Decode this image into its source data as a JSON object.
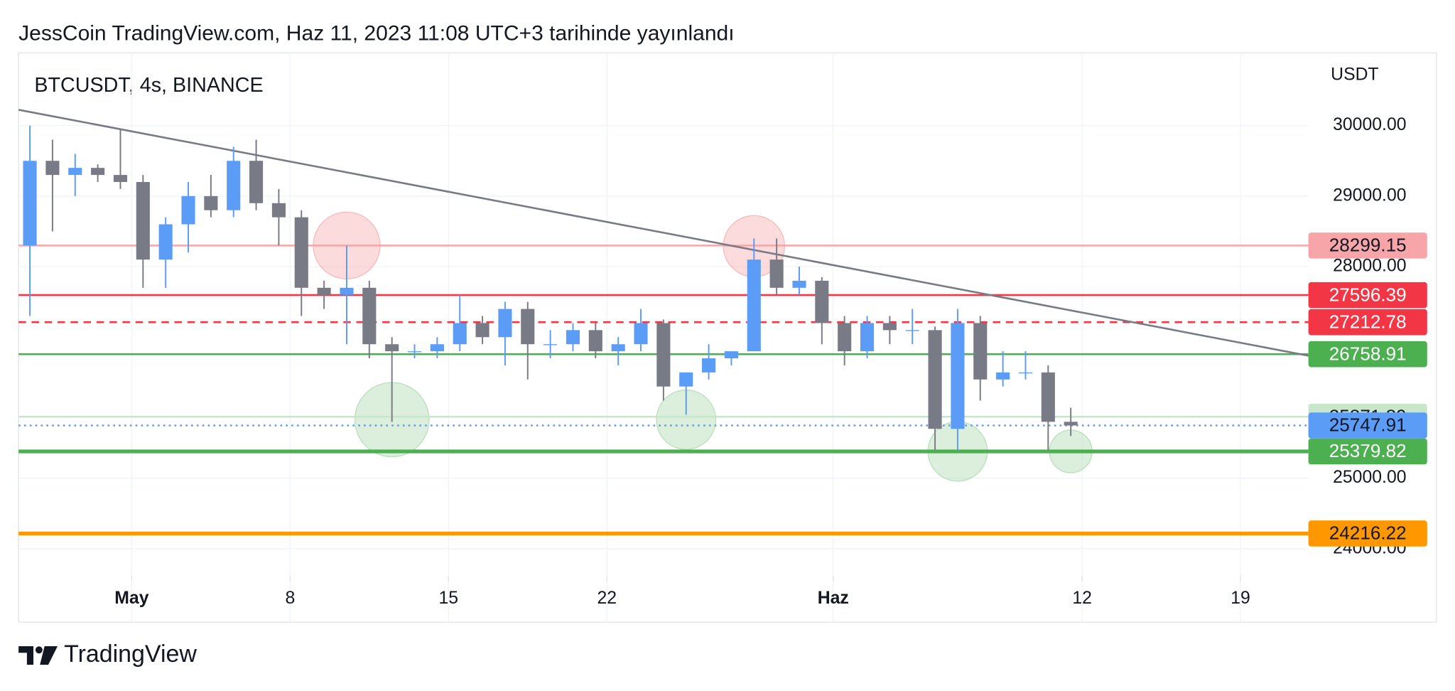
{
  "header": {
    "title": "JessCoin TradingView.com, Haz 11, 2023 11:08 UTC+3 tarihinde yayınlandı"
  },
  "footer": {
    "brand": "TradingView"
  },
  "chart_data": {
    "type": "candlestick",
    "title": "BTCUSDT, 4s, BINANCE",
    "y_axis_label": "USDT",
    "up_color": "#5b9cf6",
    "down_color": "#787b86",
    "grid": true,
    "x": [
      "2023-04-26",
      "2023-04-27",
      "2023-04-28",
      "2023-04-29",
      "2023-04-30",
      "2023-05-01",
      "2023-05-02",
      "2023-05-03",
      "2023-05-04",
      "2023-05-05",
      "2023-05-06",
      "2023-05-07",
      "2023-05-08",
      "2023-05-09",
      "2023-05-10",
      "2023-05-11",
      "2023-05-12",
      "2023-05-13",
      "2023-05-14",
      "2023-05-15",
      "2023-05-16",
      "2023-05-17",
      "2023-05-18",
      "2023-05-19",
      "2023-05-20",
      "2023-05-21",
      "2023-05-22",
      "2023-05-23",
      "2023-05-24",
      "2023-05-25",
      "2023-05-26",
      "2023-05-27",
      "2023-05-28",
      "2023-05-29",
      "2023-05-30",
      "2023-05-31",
      "2023-06-01",
      "2023-06-02",
      "2023-06-03",
      "2023-06-04",
      "2023-06-05",
      "2023-06-06",
      "2023-06-07",
      "2023-06-08",
      "2023-06-09",
      "2023-06-10",
      "2023-06-11"
    ],
    "open": [
      28300,
      29500,
      29300,
      29400,
      29300,
      29200,
      28100,
      28600,
      29000,
      28800,
      29500,
      28900,
      28700,
      27700,
      27600,
      27700,
      26900,
      26800,
      26800,
      26900,
      27200,
      27000,
      27400,
      26900,
      26900,
      27100,
      26800,
      26900,
      27200,
      26300,
      26500,
      26700,
      26800,
      28100,
      27700,
      27800,
      27200,
      26800,
      27200,
      27100,
      27100,
      25700,
      27200,
      26400,
      26500,
      26500,
      25800
    ],
    "high": [
      30000,
      29800,
      29600,
      29450,
      29950,
      29300,
      28700,
      29200,
      29300,
      29700,
      29800,
      29100,
      28800,
      27800,
      28300,
      27800,
      27000,
      26900,
      27000,
      27600,
      27300,
      27500,
      27500,
      27100,
      27200,
      27200,
      27000,
      27400,
      27250,
      26500,
      26900,
      26800,
      28400,
      28400,
      28000,
      27850,
      27300,
      27300,
      27300,
      27400,
      27150,
      27400,
      27300,
      26800,
      26800,
      26600,
      26000
    ],
    "low": [
      27300,
      28500,
      29000,
      29200,
      29100,
      27700,
      27700,
      28200,
      28700,
      28700,
      28800,
      28300,
      27300,
      27400,
      26900,
      26700,
      25800,
      26700,
      26700,
      26800,
      26900,
      26600,
      26400,
      26700,
      26800,
      26700,
      26600,
      26800,
      26100,
      25900,
      26400,
      26600,
      26800,
      27600,
      27600,
      26900,
      26600,
      26700,
      26900,
      26900,
      25400,
      25400,
      26100,
      26300,
      26400,
      25400,
      25600
    ],
    "close": [
      29500,
      29300,
      29400,
      29300,
      29200,
      28100,
      28600,
      29000,
      28800,
      29500,
      28900,
      28700,
      27700,
      27600,
      27700,
      26900,
      26800,
      26800,
      26900,
      27200,
      27000,
      27400,
      26900,
      26900,
      27100,
      26800,
      26900,
      27200,
      26300,
      26500,
      26700,
      26800,
      28100,
      27700,
      27800,
      27200,
      26800,
      27200,
      27100,
      27100,
      25700,
      27200,
      26400,
      26500,
      26500,
      25800,
      25747.91
    ],
    "xlim": [
      "2023-04-26",
      "2023-06-22"
    ],
    "xticks": [
      {
        "value": "2023-05-01",
        "label": "May"
      },
      {
        "value": "2023-05-08",
        "label": "8"
      },
      {
        "value": "2023-05-15",
        "label": "15"
      },
      {
        "value": "2023-05-22",
        "label": "22"
      },
      {
        "value": "2023-06-01",
        "label": "Haz"
      },
      {
        "value": "2023-06-12",
        "label": "12"
      },
      {
        "value": "2023-06-19",
        "label": "19"
      }
    ],
    "ylim": [
      22960,
      31030
    ],
    "yticks": [
      {
        "value": 24000,
        "label": "24000.00"
      },
      {
        "value": 25000,
        "label": "25000.00"
      },
      {
        "value": 28000,
        "label": "28000.00"
      },
      {
        "value": 29000,
        "label": "29000.00"
      },
      {
        "value": 30000,
        "label": "30000.00"
      }
    ],
    "price_lines": [
      {
        "price": 28299.15,
        "color": "#f7a5a8",
        "label_color": "#f7a5a8",
        "text_color": "#131722",
        "style": "solid"
      },
      {
        "price": 27596.39,
        "color": "#f23645",
        "label_color": "#f23645",
        "text_color": "#ffffff",
        "style": "solid"
      },
      {
        "price": 27212.78,
        "color": "#f23645",
        "label_color": "#f23645",
        "text_color": "#ffffff",
        "style": "dashed"
      },
      {
        "price": 26758.91,
        "color": "#4caf50",
        "label_color": "#4caf50",
        "text_color": "#ffffff",
        "style": "solid"
      },
      {
        "price": 25871.89,
        "color": "#c8e6c9",
        "label_color": "#c8e6c9",
        "text_color": "#131722",
        "style": "solid"
      },
      {
        "price": 25747.91,
        "color": "#5b9cf6",
        "label_color": "#5b9cf6",
        "text_color": "#131722",
        "style": "dotted"
      },
      {
        "price": 25379.82,
        "color": "#4caf50",
        "label_color": "#4caf50",
        "text_color": "#ffffff",
        "style": "thick"
      },
      {
        "price": 24216.22,
        "color": "#ff9800",
        "label_color": "#ff9800",
        "text_color": "#131722",
        "style": "thick"
      }
    ],
    "trendline": {
      "x": [
        "2023-04-26",
        "2023-06-22"
      ],
      "y": [
        30224,
        26737
      ],
      "color": "#787b86"
    },
    "markers": [
      {
        "x": "2023-05-10",
        "y": 28300,
        "color": "#f7a5a8"
      },
      {
        "x": "2023-05-28",
        "y": 28290,
        "color": "#f7a5a8"
      },
      {
        "x": "2023-05-12",
        "y": 25830,
        "color": "#a5d6a7"
      },
      {
        "x": "2023-05-25",
        "y": 25830,
        "color": "#a5d6a7"
      },
      {
        "x": "2023-06-06",
        "y": 25380,
        "color": "#a5d6a7"
      },
      {
        "x": "2023-06-11",
        "y": 25380,
        "color": "#a5d6a7"
      }
    ]
  }
}
